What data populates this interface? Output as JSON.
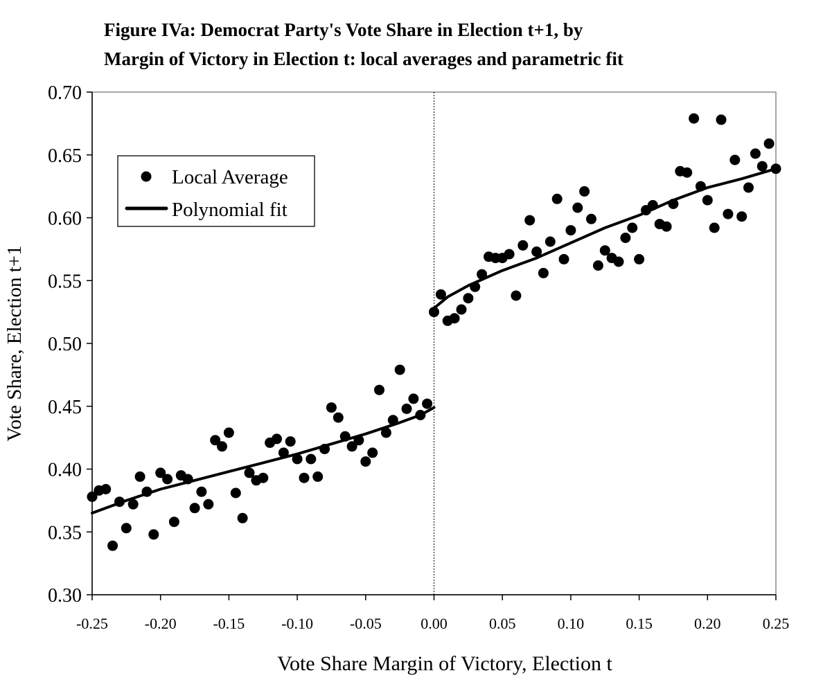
{
  "chart_data": {
    "type": "scatter",
    "title_lines": [
      "Figure IVa: Democrat Party's Vote Share in Election t+1, by",
      "Margin of Victory in Election t: local averages and parametric fit"
    ],
    "xlabel": "Vote Share Margin of Victory, Election t",
    "ylabel": "Vote Share, Election t+1",
    "xlim": [
      -0.25,
      0.25
    ],
    "ylim": [
      0.3,
      0.7
    ],
    "xticks": [
      "-0.25",
      "-0.20",
      "-0.15",
      "-0.10",
      "-0.05",
      "0.00",
      "0.05",
      "0.10",
      "0.15",
      "0.20",
      "0.25"
    ],
    "yticks": [
      "0.30",
      "0.35",
      "0.40",
      "0.45",
      "0.50",
      "0.55",
      "0.60",
      "0.65",
      "0.70"
    ],
    "grid": false,
    "legend_position": "top-left",
    "cutoff_line_x": 0.0,
    "series": [
      {
        "name": "Local Average",
        "type": "scatter",
        "color": "#000000",
        "points": [
          [
            -0.25,
            0.378
          ],
          [
            -0.245,
            0.383
          ],
          [
            -0.24,
            0.384
          ],
          [
            -0.235,
            0.339
          ],
          [
            -0.23,
            0.374
          ],
          [
            -0.225,
            0.353
          ],
          [
            -0.22,
            0.372
          ],
          [
            -0.215,
            0.394
          ],
          [
            -0.21,
            0.382
          ],
          [
            -0.205,
            0.348
          ],
          [
            -0.2,
            0.397
          ],
          [
            -0.195,
            0.392
          ],
          [
            -0.19,
            0.358
          ],
          [
            -0.185,
            0.395
          ],
          [
            -0.18,
            0.392
          ],
          [
            -0.175,
            0.369
          ],
          [
            -0.17,
            0.382
          ],
          [
            -0.165,
            0.372
          ],
          [
            -0.16,
            0.423
          ],
          [
            -0.155,
            0.418
          ],
          [
            -0.15,
            0.429
          ],
          [
            -0.145,
            0.381
          ],
          [
            -0.14,
            0.361
          ],
          [
            -0.135,
            0.397
          ],
          [
            -0.13,
            0.391
          ],
          [
            -0.125,
            0.393
          ],
          [
            -0.12,
            0.421
          ],
          [
            -0.115,
            0.424
          ],
          [
            -0.11,
            0.413
          ],
          [
            -0.105,
            0.422
          ],
          [
            -0.1,
            0.408
          ],
          [
            -0.095,
            0.393
          ],
          [
            -0.09,
            0.408
          ],
          [
            -0.085,
            0.394
          ],
          [
            -0.08,
            0.416
          ],
          [
            -0.075,
            0.449
          ],
          [
            -0.07,
            0.441
          ],
          [
            -0.065,
            0.426
          ],
          [
            -0.06,
            0.418
          ],
          [
            -0.055,
            0.423
          ],
          [
            -0.05,
            0.406
          ],
          [
            -0.045,
            0.413
          ],
          [
            -0.04,
            0.463
          ],
          [
            -0.035,
            0.429
          ],
          [
            -0.03,
            0.439
          ],
          [
            -0.025,
            0.479
          ],
          [
            -0.02,
            0.448
          ],
          [
            -0.015,
            0.456
          ],
          [
            -0.01,
            0.443
          ],
          [
            -0.005,
            0.452
          ],
          [
            0.0,
            0.525
          ],
          [
            0.005,
            0.539
          ],
          [
            0.01,
            0.518
          ],
          [
            0.015,
            0.52
          ],
          [
            0.02,
            0.527
          ],
          [
            0.025,
            0.536
          ],
          [
            0.03,
            0.545
          ],
          [
            0.035,
            0.555
          ],
          [
            0.04,
            0.569
          ],
          [
            0.045,
            0.568
          ],
          [
            0.05,
            0.568
          ],
          [
            0.055,
            0.571
          ],
          [
            0.06,
            0.538
          ],
          [
            0.065,
            0.578
          ],
          [
            0.07,
            0.598
          ],
          [
            0.075,
            0.573
          ],
          [
            0.08,
            0.556
          ],
          [
            0.085,
            0.581
          ],
          [
            0.09,
            0.615
          ],
          [
            0.095,
            0.567
          ],
          [
            0.1,
            0.59
          ],
          [
            0.105,
            0.608
          ],
          [
            0.11,
            0.621
          ],
          [
            0.115,
            0.599
          ],
          [
            0.12,
            0.562
          ],
          [
            0.125,
            0.574
          ],
          [
            0.13,
            0.568
          ],
          [
            0.135,
            0.565
          ],
          [
            0.14,
            0.584
          ],
          [
            0.145,
            0.592
          ],
          [
            0.15,
            0.567
          ],
          [
            0.155,
            0.606
          ],
          [
            0.16,
            0.61
          ],
          [
            0.165,
            0.595
          ],
          [
            0.17,
            0.593
          ],
          [
            0.175,
            0.611
          ],
          [
            0.18,
            0.637
          ],
          [
            0.185,
            0.636
          ],
          [
            0.19,
            0.679
          ],
          [
            0.195,
            0.625
          ],
          [
            0.2,
            0.614
          ],
          [
            0.205,
            0.592
          ],
          [
            0.21,
            0.678
          ],
          [
            0.215,
            0.603
          ],
          [
            0.22,
            0.646
          ],
          [
            0.225,
            0.601
          ],
          [
            0.23,
            0.624
          ],
          [
            0.235,
            0.651
          ],
          [
            0.24,
            0.641
          ],
          [
            0.245,
            0.659
          ],
          [
            0.25,
            0.639
          ]
        ]
      },
      {
        "name": "Polynomial fit",
        "type": "line",
        "color": "#000000",
        "segments": [
          [
            [
              -0.25,
              0.365
            ],
            [
              -0.225,
              0.375
            ],
            [
              -0.2,
              0.384
            ],
            [
              -0.175,
              0.391
            ],
            [
              -0.15,
              0.398
            ],
            [
              -0.125,
              0.405
            ],
            [
              -0.1,
              0.412
            ],
            [
              -0.075,
              0.42
            ],
            [
              -0.05,
              0.428
            ],
            [
              -0.025,
              0.437
            ],
            [
              -0.01,
              0.443
            ],
            [
              0.0,
              0.449
            ]
          ],
          [
            [
              0.0,
              0.528
            ],
            [
              0.01,
              0.537
            ],
            [
              0.025,
              0.546
            ],
            [
              0.05,
              0.558
            ],
            [
              0.075,
              0.568
            ],
            [
              0.1,
              0.58
            ],
            [
              0.125,
              0.592
            ],
            [
              0.15,
              0.602
            ],
            [
              0.175,
              0.614
            ],
            [
              0.2,
              0.624
            ],
            [
              0.225,
              0.631
            ],
            [
              0.25,
              0.639
            ]
          ]
        ]
      }
    ]
  }
}
